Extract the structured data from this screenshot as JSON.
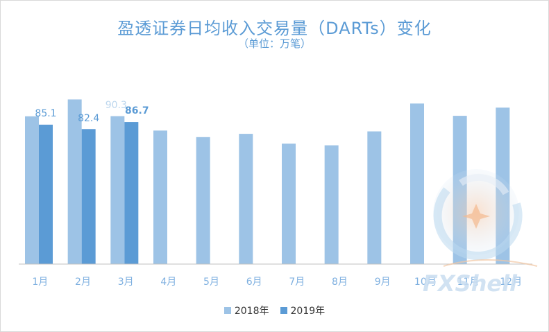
{
  "chart_data": {
    "type": "bar",
    "title": "盈透证券日均收入交易量（DARTs）变化",
    "subtitle": "（单位：万笔）",
    "xlabel": "",
    "ylabel": "",
    "categories": [
      "1月",
      "2月",
      "3月",
      "4月",
      "5月",
      "6月",
      "7月",
      "8月",
      "9月",
      "10月",
      "11月",
      "12月"
    ],
    "ylim": [
      0,
      110
    ],
    "grid": false,
    "legend_position": "bottom",
    "series": [
      {
        "name": "2018年",
        "color": "#9dc3e6",
        "values": [
          90.2,
          100.5,
          90.3,
          81.5,
          77.5,
          79.5,
          73.5,
          72.5,
          81.0,
          98.0,
          90.5,
          95.5
        ],
        "labels": [
          null,
          null,
          "90.3",
          null,
          null,
          null,
          null,
          null,
          null,
          null,
          null,
          null
        ]
      },
      {
        "name": "2019年",
        "color": "#5b9bd5",
        "values": [
          85.1,
          82.4,
          86.7,
          null,
          null,
          null,
          null,
          null,
          null,
          null,
          null,
          null
        ],
        "labels": [
          "85.1",
          "82.4",
          "86.7",
          null,
          null,
          null,
          null,
          null,
          null,
          null,
          null,
          null
        ]
      }
    ]
  },
  "watermark": {
    "text": "FXShell",
    "icon": "fxshell-logo-icon"
  }
}
